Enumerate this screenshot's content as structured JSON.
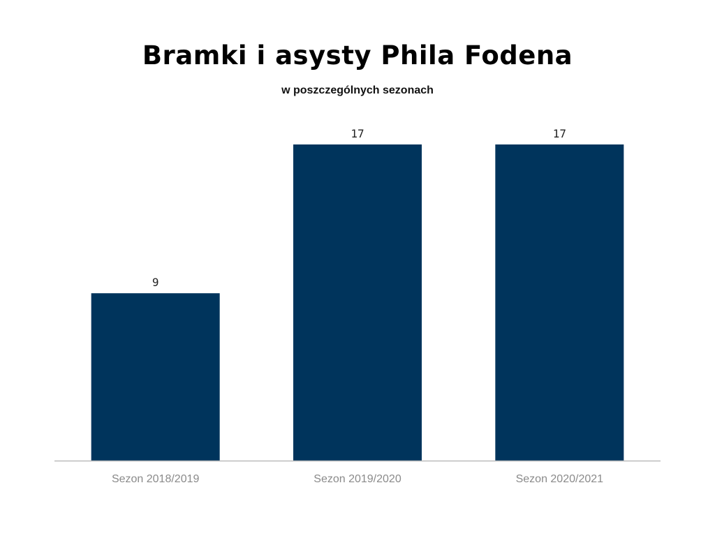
{
  "chart_data": {
    "type": "bar",
    "title": "Bramki i asysty Phila Fodena",
    "subtitle": "w poszczególnych sezonach",
    "categories": [
      "Sezon 2018/2019",
      "Sezon 2019/2020",
      "Sezon 2020/2021"
    ],
    "values": [
      9,
      17,
      17
    ],
    "data_labels": [
      "9",
      "17",
      "17"
    ],
    "xlabel": "",
    "ylabel": "",
    "ylim": [
      0,
      18
    ],
    "grid": false,
    "legend": "none",
    "colors": {
      "bar": "#00345c",
      "axis": "#bdbdbd"
    }
  }
}
